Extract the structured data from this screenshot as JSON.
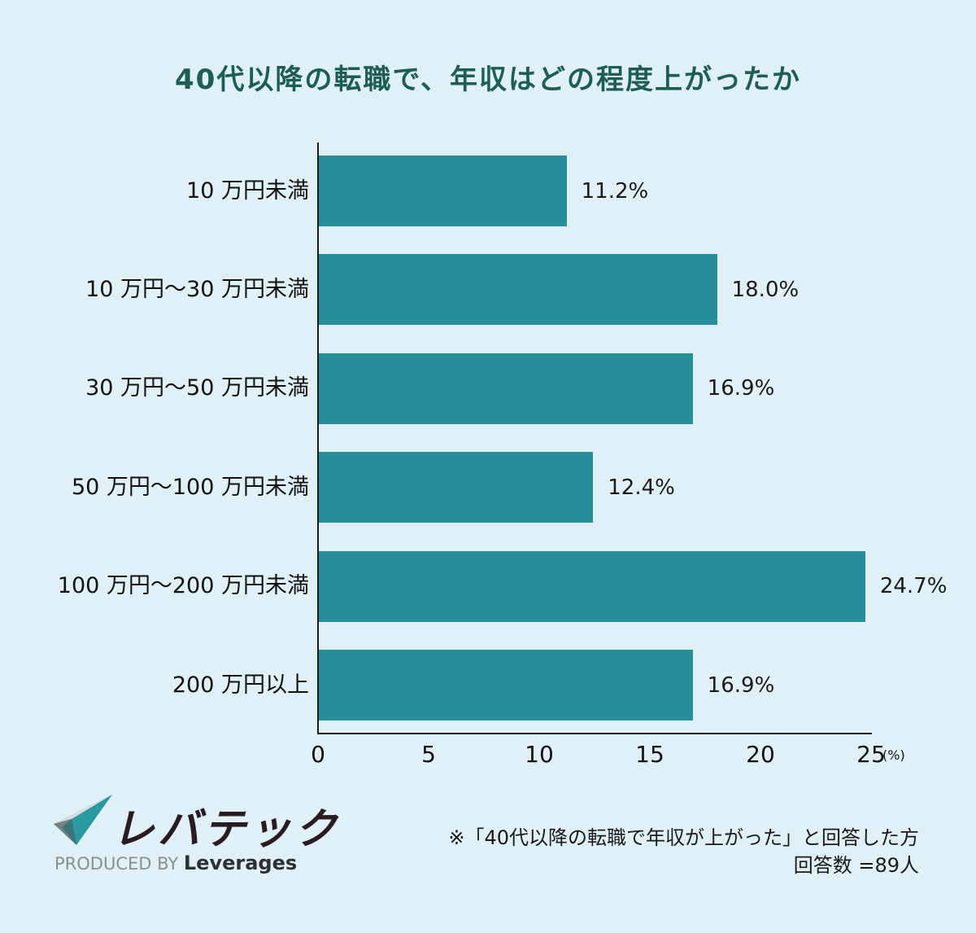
{
  "title": "40代以降の転職で、年収はどの程度上がったか",
  "chart_data": {
    "type": "bar",
    "orientation": "horizontal",
    "title": "40代以降の転職で、年収はどの程度上がったか",
    "categories": [
      "10 万円未満",
      "10 万円〜30 万円未満",
      "30 万円〜50 万円未満",
      "50 万円〜100 万円未満",
      "100 万円〜200 万円未満",
      "200 万円以上"
    ],
    "values": [
      11.2,
      18.0,
      16.9,
      12.4,
      24.7,
      16.9
    ],
    "value_labels": [
      "11.2%",
      "18.0%",
      "16.9%",
      "12.4%",
      "24.7%",
      "16.9%"
    ],
    "xlabel": "(%)",
    "ylabel": "",
    "xlim": [
      0,
      25
    ],
    "xticks": [
      "0",
      "5",
      "10",
      "15",
      "20",
      "25"
    ],
    "grid": false,
    "legend": "none",
    "bar_color": "#278e9c"
  },
  "axis": {
    "unit": "(%)"
  },
  "colors": {
    "background": "#dff0f7",
    "bar": "#278e9c",
    "title": "#1e5c56"
  },
  "logo": {
    "name": "レバテック",
    "produced_by": "PRODUCED BY",
    "company": "Leverages"
  },
  "note": {
    "line1": "※「40代以降の転職で年収が上がった」と回答した方",
    "line2": "回答数 =89人"
  }
}
